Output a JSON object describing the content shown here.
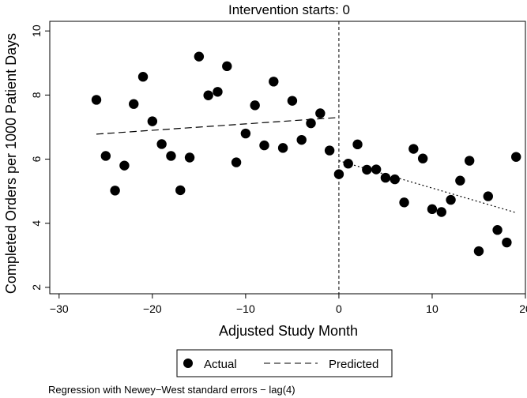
{
  "chart_data": {
    "type": "scatter",
    "title": "Intervention starts: 0",
    "xlabel": "Adjusted Study Month",
    "ylabel": "Completed Orders per 1000 Patient Days",
    "xlim": [
      -31,
      20
    ],
    "ylim": [
      1.8,
      10.3
    ],
    "xticks": [
      -30,
      -20,
      -10,
      0,
      10,
      20
    ],
    "yticks": [
      2,
      4,
      6,
      8,
      10
    ],
    "grid": false,
    "legend_position": "bottom",
    "intervention_x": 0,
    "series": [
      {
        "name": "Actual",
        "points": [
          [
            -26,
            7.85
          ],
          [
            -25,
            6.1
          ],
          [
            -24,
            5.02
          ],
          [
            -23,
            5.8
          ],
          [
            -22,
            7.72
          ],
          [
            -21,
            8.57
          ],
          [
            -20,
            7.18
          ],
          [
            -19,
            6.47
          ],
          [
            -18,
            6.1
          ],
          [
            -17,
            5.03
          ],
          [
            -16,
            6.05
          ],
          [
            -15,
            9.2
          ],
          [
            -14,
            7.99
          ],
          [
            -13,
            8.1
          ],
          [
            -12,
            8.9
          ],
          [
            -11,
            5.9
          ],
          [
            -10,
            6.8
          ],
          [
            -9,
            7.68
          ],
          [
            -8,
            6.43
          ],
          [
            -7,
            8.42
          ],
          [
            -6,
            6.35
          ],
          [
            -5,
            7.82
          ],
          [
            -4,
            6.6
          ],
          [
            -3,
            7.12
          ],
          [
            -2,
            7.43
          ],
          [
            -1,
            6.27
          ],
          [
            0,
            5.53
          ],
          [
            1,
            5.86
          ],
          [
            2,
            6.46
          ],
          [
            3,
            5.67
          ],
          [
            4,
            5.68
          ],
          [
            5,
            5.42
          ],
          [
            6,
            5.37
          ],
          [
            7,
            4.65
          ],
          [
            8,
            6.32
          ],
          [
            9,
            6.02
          ],
          [
            10,
            4.44
          ],
          [
            11,
            4.35
          ],
          [
            12,
            4.73
          ],
          [
            13,
            5.33
          ],
          [
            14,
            5.95
          ],
          [
            15,
            3.13
          ],
          [
            16,
            4.84
          ],
          [
            17,
            3.79
          ],
          [
            18,
            3.4
          ],
          [
            19,
            6.07
          ]
        ]
      },
      {
        "name": "Predicted",
        "segments": [
          {
            "style": "dashed",
            "x": [
              -26,
              0
            ],
            "y": [
              6.78,
              7.3
            ]
          },
          {
            "style": "dotted",
            "x": [
              0,
              19
            ],
            "y": [
              5.95,
              4.33
            ]
          }
        ]
      }
    ],
    "note": "Regression with Newey−West standard errors − lag(4)"
  }
}
